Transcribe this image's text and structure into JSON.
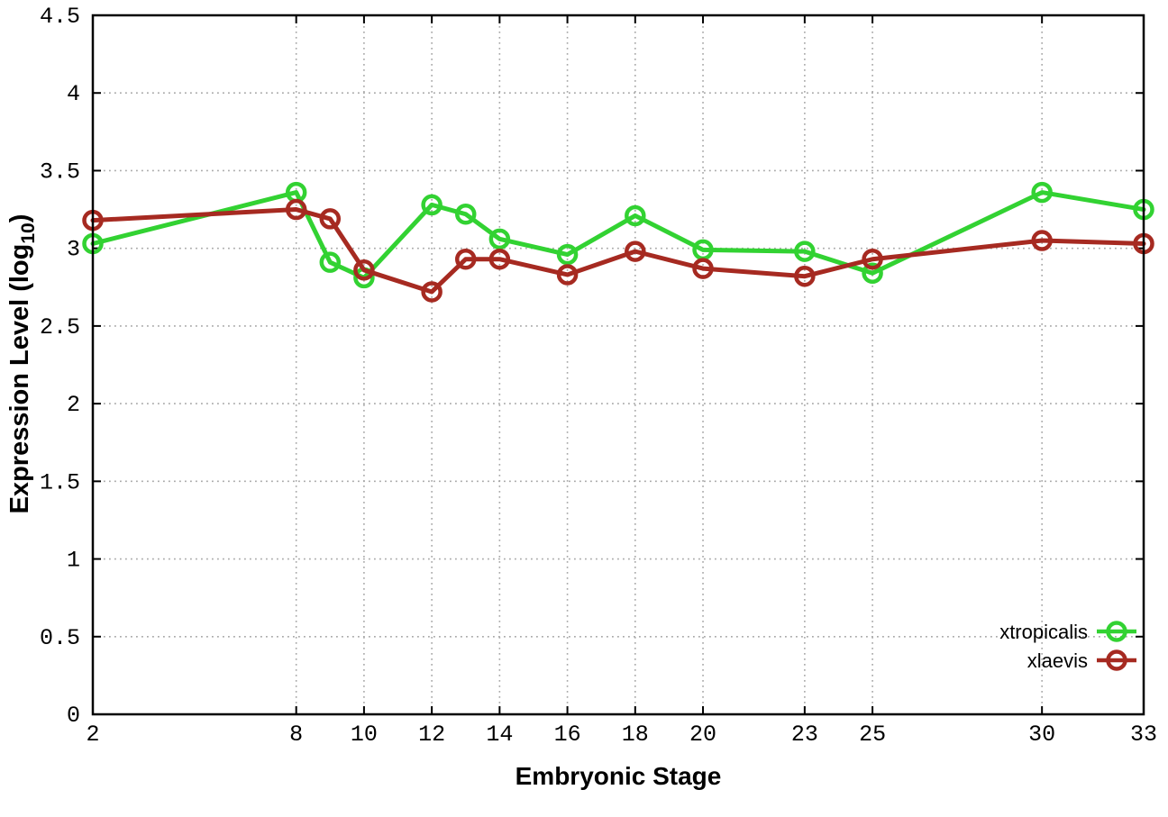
{
  "chart_data": {
    "type": "line",
    "title": "",
    "xlabel": "Embryonic Stage",
    "ylabel": "Expression Level (log10)",
    "ylabel_parts": {
      "prefix": "Expression Level (log",
      "subscript": "10",
      "suffix": ")"
    },
    "xlim": [
      2,
      33
    ],
    "ylim": [
      0,
      4.5
    ],
    "xticks": [
      2,
      8,
      10,
      12,
      14,
      16,
      18,
      20,
      23,
      25,
      30,
      33
    ],
    "yticks": [
      0,
      0.5,
      1,
      1.5,
      2,
      2.5,
      3,
      3.5,
      4,
      4.5
    ],
    "ytick_labels": [
      "0",
      "0.5",
      "1",
      "1.5",
      "2",
      "2.5",
      "3",
      "3.5",
      "4",
      "4.5"
    ],
    "grid": true,
    "legend_position": "inside-bottom-right",
    "x": [
      2,
      8,
      9,
      10,
      12,
      13,
      14,
      16,
      18,
      20,
      23,
      25,
      30,
      33
    ],
    "series": [
      {
        "name": "xtropicalis",
        "color": "#32d232",
        "values": [
          3.03,
          3.36,
          2.91,
          2.81,
          3.28,
          3.22,
          3.06,
          2.96,
          3.21,
          2.99,
          2.98,
          2.84,
          3.36,
          3.25
        ]
      },
      {
        "name": "xlaevis",
        "color": "#a62a21",
        "values": [
          3.18,
          3.25,
          3.19,
          2.86,
          2.72,
          2.93,
          2.93,
          2.83,
          2.98,
          2.87,
          2.82,
          2.93,
          3.05,
          3.03
        ]
      }
    ],
    "style": {
      "grid_color": "#a8a8a8",
      "axis_color": "#000000",
      "background": "#ffffff"
    }
  }
}
